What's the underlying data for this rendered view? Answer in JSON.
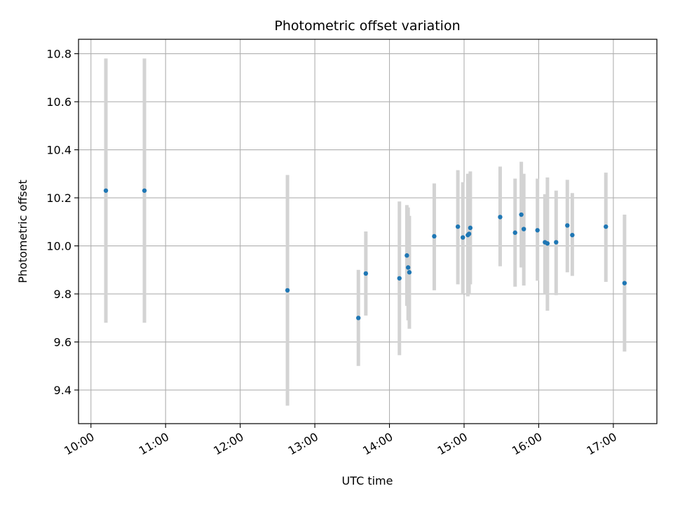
{
  "chart_data": {
    "type": "scatter",
    "title": "Photometric offset variation",
    "xlabel": "UTC time",
    "ylabel": "Photometric offset",
    "xlim": [
      "09:50",
      "17:35"
    ],
    "ylim": [
      9.26,
      10.86
    ],
    "x_ticks": [
      "10:00",
      "11:00",
      "12:00",
      "13:00",
      "14:00",
      "15:00",
      "16:00",
      "17:00"
    ],
    "y_ticks": [
      "9.4",
      "9.6",
      "9.8",
      "10.0",
      "10.2",
      "10.4",
      "10.6",
      "10.8"
    ],
    "grid": true,
    "colors": {
      "points": "#1f77b4",
      "errorbars": "#d3d3d3",
      "grid": "#b0b0b0",
      "axes": "#000000"
    },
    "points": [
      {
        "t": "10:12",
        "y": 10.23,
        "low": 9.68,
        "high": 10.78
      },
      {
        "t": "10:43",
        "y": 10.23,
        "low": 9.68,
        "high": 10.78
      },
      {
        "t": "12:38",
        "y": 9.815,
        "low": 9.335,
        "high": 10.295
      },
      {
        "t": "13:35",
        "y": 9.7,
        "low": 9.5,
        "high": 9.9
      },
      {
        "t": "13:41",
        "y": 9.885,
        "low": 9.71,
        "high": 10.06
      },
      {
        "t": "14:08",
        "y": 9.865,
        "low": 9.545,
        "high": 10.185
      },
      {
        "t": "14:14",
        "y": 9.96,
        "low": 9.75,
        "high": 10.17
      },
      {
        "t": "14:15",
        "y": 9.91,
        "low": 9.69,
        "high": 10.16
      },
      {
        "t": "14:16",
        "y": 9.89,
        "low": 9.655,
        "high": 10.125
      },
      {
        "t": "14:36",
        "y": 10.04,
        "low": 9.815,
        "high": 10.26
      },
      {
        "t": "14:55",
        "y": 10.08,
        "low": 9.84,
        "high": 10.315
      },
      {
        "t": "14:59",
        "y": 10.035,
        "low": 9.8,
        "high": 10.265
      },
      {
        "t": "15:03",
        "y": 10.045,
        "low": 9.79,
        "high": 10.3
      },
      {
        "t": "15:04",
        "y": 10.05,
        "low": 9.8,
        "high": 10.3
      },
      {
        "t": "15:05",
        "y": 10.075,
        "low": 9.84,
        "high": 10.31
      },
      {
        "t": "15:29",
        "y": 10.12,
        "low": 9.915,
        "high": 10.33
      },
      {
        "t": "15:41",
        "y": 10.055,
        "low": 9.83,
        "high": 10.28
      },
      {
        "t": "15:46",
        "y": 10.13,
        "low": 9.91,
        "high": 10.35
      },
      {
        "t": "15:48",
        "y": 10.07,
        "low": 9.835,
        "high": 10.3
      },
      {
        "t": "15:59",
        "y": 10.065,
        "low": 9.855,
        "high": 10.28
      },
      {
        "t": "16:05",
        "y": 10.015,
        "low": 9.8,
        "high": 10.215
      },
      {
        "t": "16:07",
        "y": 10.01,
        "low": 9.73,
        "high": 10.285
      },
      {
        "t": "16:14",
        "y": 10.015,
        "low": 9.795,
        "high": 10.23
      },
      {
        "t": "16:23",
        "y": 10.085,
        "low": 9.89,
        "high": 10.275
      },
      {
        "t": "16:27",
        "y": 10.045,
        "low": 9.875,
        "high": 10.22
      },
      {
        "t": "16:54",
        "y": 10.08,
        "low": 9.85,
        "high": 10.305
      },
      {
        "t": "17:09",
        "y": 9.845,
        "low": 9.56,
        "high": 10.13
      }
    ]
  }
}
